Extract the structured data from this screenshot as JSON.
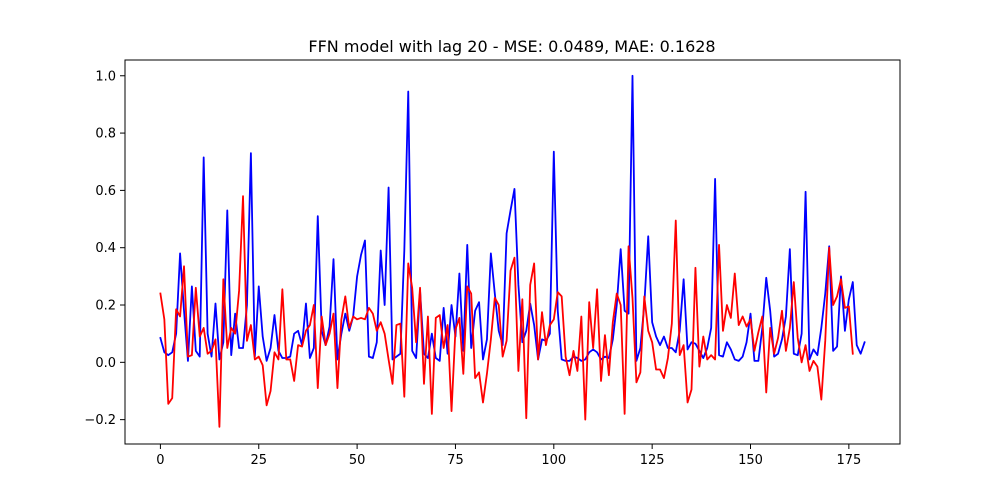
{
  "chart_data": {
    "type": "line",
    "title": "FFN model with lag 20 - MSE: 0.0489, MAE: 0.1628",
    "xlabel": "",
    "ylabel": "",
    "xlim": [
      -9,
      188
    ],
    "ylim": [
      -0.285,
      1.055
    ],
    "xticks": [
      0,
      25,
      50,
      75,
      100,
      125,
      150,
      175
    ],
    "yticks": [
      -0.2,
      0.0,
      0.2,
      0.4,
      0.6,
      0.8,
      1.0
    ],
    "xtick_labels": [
      "0",
      "25",
      "50",
      "75",
      "100",
      "125",
      "150",
      "175"
    ],
    "ytick_labels": [
      "−0.2",
      "0.0",
      "0.2",
      "0.4",
      "0.6",
      "0.8",
      "1.0"
    ],
    "grid": false,
    "legend": null,
    "series": [
      {
        "color": "#0000ff",
        "values": [
          0.085,
          0.035,
          0.025,
          0.035,
          0.1,
          0.38,
          0.18,
          0.005,
          0.265,
          0.04,
          0.02,
          0.715,
          0.1,
          0.02,
          0.205,
          0.01,
          0.07,
          0.53,
          0.025,
          0.17,
          0.05,
          0.05,
          0.2,
          0.73,
          0.02,
          0.265,
          0.09,
          0.005,
          0.05,
          0.165,
          0.04,
          0.015,
          0.015,
          0.02,
          0.1,
          0.11,
          0.06,
          0.205,
          0.015,
          0.05,
          0.51,
          0.11,
          0.06,
          0.125,
          0.36,
          0.01,
          0.1,
          0.17,
          0.11,
          0.16,
          0.3,
          0.375,
          0.425,
          0.02,
          0.015,
          0.07,
          0.39,
          0.2,
          0.61,
          0.01,
          0.02,
          0.03,
          0.39,
          0.945,
          0.04,
          0.015,
          0.25,
          0.03,
          0.015,
          0.1,
          0.015,
          0.005,
          0.19,
          0.03,
          0.2,
          0.09,
          0.31,
          0.04,
          0.41,
          0.05,
          0.18,
          0.21,
          0.01,
          0.08,
          0.38,
          0.24,
          0.11,
          0.06,
          0.45,
          0.53,
          0.605,
          0.27,
          0.07,
          0.11,
          0.205,
          0.13,
          0.01,
          0.08,
          0.075,
          0.1,
          0.735,
          0.18,
          0.01,
          0.005,
          0.005,
          0.02,
          0.015,
          0.005,
          0.01,
          0.035,
          0.045,
          0.035,
          0.01,
          0.02,
          0.015,
          0.08,
          0.2,
          0.395,
          0.18,
          0.17,
          1.0,
          0.005,
          0.05,
          0.2,
          0.44,
          0.14,
          0.09,
          0.06,
          0.09,
          0.05,
          0.05,
          0.035,
          0.11,
          0.29,
          0.045,
          0.07,
          0.065,
          0.04,
          0.015,
          0.05,
          0.12,
          0.64,
          0.025,
          0.02,
          0.07,
          0.045,
          0.01,
          0.005,
          0.02,
          0.07,
          0.17,
          0.005,
          0.005,
          0.12,
          0.295,
          0.18,
          0.02,
          0.03,
          0.08,
          0.16,
          0.395,
          0.03,
          0.025,
          0.1,
          0.595,
          0.01,
          0.045,
          0.025,
          0.12,
          0.24,
          0.405,
          0.04,
          0.055,
          0.3,
          0.11,
          0.22,
          0.28,
          0.06,
          0.03,
          0.07
        ]
      },
      {
        "color": "#ff0000",
        "values": [
          0.24,
          0.15,
          -0.145,
          -0.125,
          0.185,
          0.16,
          0.335,
          0.02,
          0.025,
          0.26,
          0.09,
          0.12,
          0.03,
          0.04,
          0.08,
          -0.225,
          0.29,
          0.05,
          0.12,
          0.1,
          0.25,
          0.58,
          0.075,
          0.13,
          0.01,
          0.02,
          -0.01,
          -0.15,
          -0.1,
          0.035,
          0.01,
          0.255,
          0.01,
          0.01,
          -0.065,
          0.06,
          0.055,
          0.11,
          0.13,
          0.2,
          -0.09,
          0.16,
          0.06,
          0.1,
          0.17,
          -0.09,
          0.15,
          0.23,
          0.12,
          0.16,
          0.15,
          0.155,
          0.15,
          0.19,
          0.17,
          0.11,
          0.14,
          0.1,
          0.01,
          -0.075,
          0.13,
          0.135,
          -0.12,
          0.345,
          0.26,
          0.07,
          0.26,
          -0.075,
          0.16,
          -0.18,
          0.155,
          0.165,
          0.05,
          0.13,
          -0.17,
          0.115,
          0.155,
          -0.04,
          0.265,
          0.24,
          -0.055,
          -0.035,
          -0.14,
          -0.04,
          0.08,
          0.225,
          0.2,
          0.02,
          0.075,
          0.32,
          0.365,
          -0.03,
          0.22,
          -0.195,
          0.27,
          0.345,
          0.01,
          0.175,
          0.06,
          0.13,
          0.15,
          0.245,
          0.23,
          0.02,
          -0.045,
          0.04,
          -0.03,
          0.16,
          -0.2,
          0.21,
          0.05,
          0.255,
          -0.065,
          0.095,
          -0.045,
          0.14,
          0.24,
          0.2,
          -0.18,
          0.405,
          0.225,
          -0.07,
          -0.035,
          0.23,
          0.11,
          0.07,
          -0.025,
          -0.025,
          -0.055,
          0.015,
          0.135,
          0.495,
          0.025,
          0.06,
          -0.14,
          -0.095,
          0.33,
          -0.015,
          0.09,
          0.01,
          0.025,
          0.01,
          0.41,
          0.11,
          0.2,
          0.155,
          0.31,
          0.13,
          0.16,
          0.125,
          0.15,
          0.04,
          0.105,
          0.16,
          -0.105,
          0.12,
          0.03,
          0.085,
          0.18,
          0.04,
          0.12,
          0.28,
          0.085,
          0.0,
          0.06,
          -0.03,
          0.005,
          -0.015,
          -0.13,
          0.075,
          0.4,
          0.2,
          0.23,
          0.29,
          0.19,
          0.195,
          0.03
        ]
      }
    ]
  }
}
